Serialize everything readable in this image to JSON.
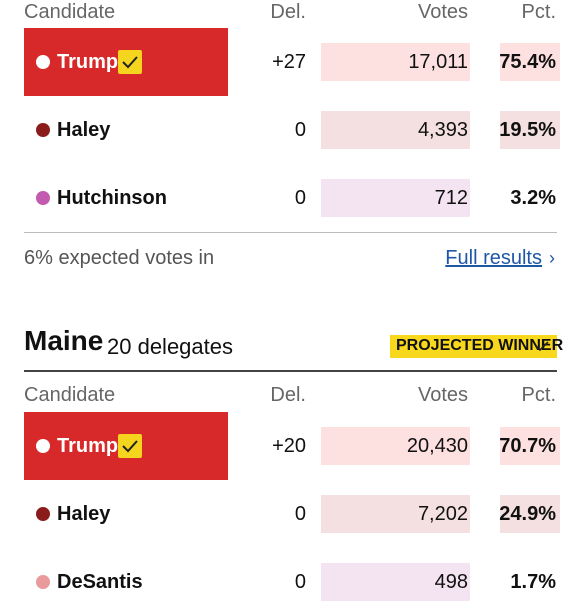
{
  "sections": [
    {
      "columns": [
        "Candidate",
        "Del.",
        "Votes",
        "Pct."
      ],
      "rows": [
        {
          "name": "Trump",
          "delegates": "+27",
          "votes": "17,011",
          "pct": "75.4%",
          "color": "#ffffff"
        },
        {
          "name": "Haley",
          "delegates": "0",
          "votes": "4,393",
          "pct": "19.5%",
          "color": "#8b1c1c"
        },
        {
          "name": "Hutchinson",
          "delegates": "0",
          "votes": "712",
          "pct": "3.2%",
          "color": "#c25bb0"
        }
      ],
      "footer": {
        "text": "6% expected votes in",
        "link": "Full results"
      }
    },
    {
      "title": "Maine",
      "delegates": "20 delegates",
      "badge": "PROJECTED WINNER",
      "columns": [
        "Candidate",
        "Del.",
        "Votes",
        "Pct."
      ],
      "rows": [
        {
          "name": "Trump",
          "delegates": "+20",
          "votes": "20,430",
          "pct": "70.7%",
          "color": "#ffffff"
        },
        {
          "name": "Haley",
          "delegates": "0",
          "votes": "7,202",
          "pct": "24.9%",
          "color": "#8b1c1c"
        },
        {
          "name": "DeSantis",
          "delegates": "0",
          "votes": "498",
          "pct": "1.7%",
          "color": "#e99a9a"
        }
      ]
    }
  ]
}
